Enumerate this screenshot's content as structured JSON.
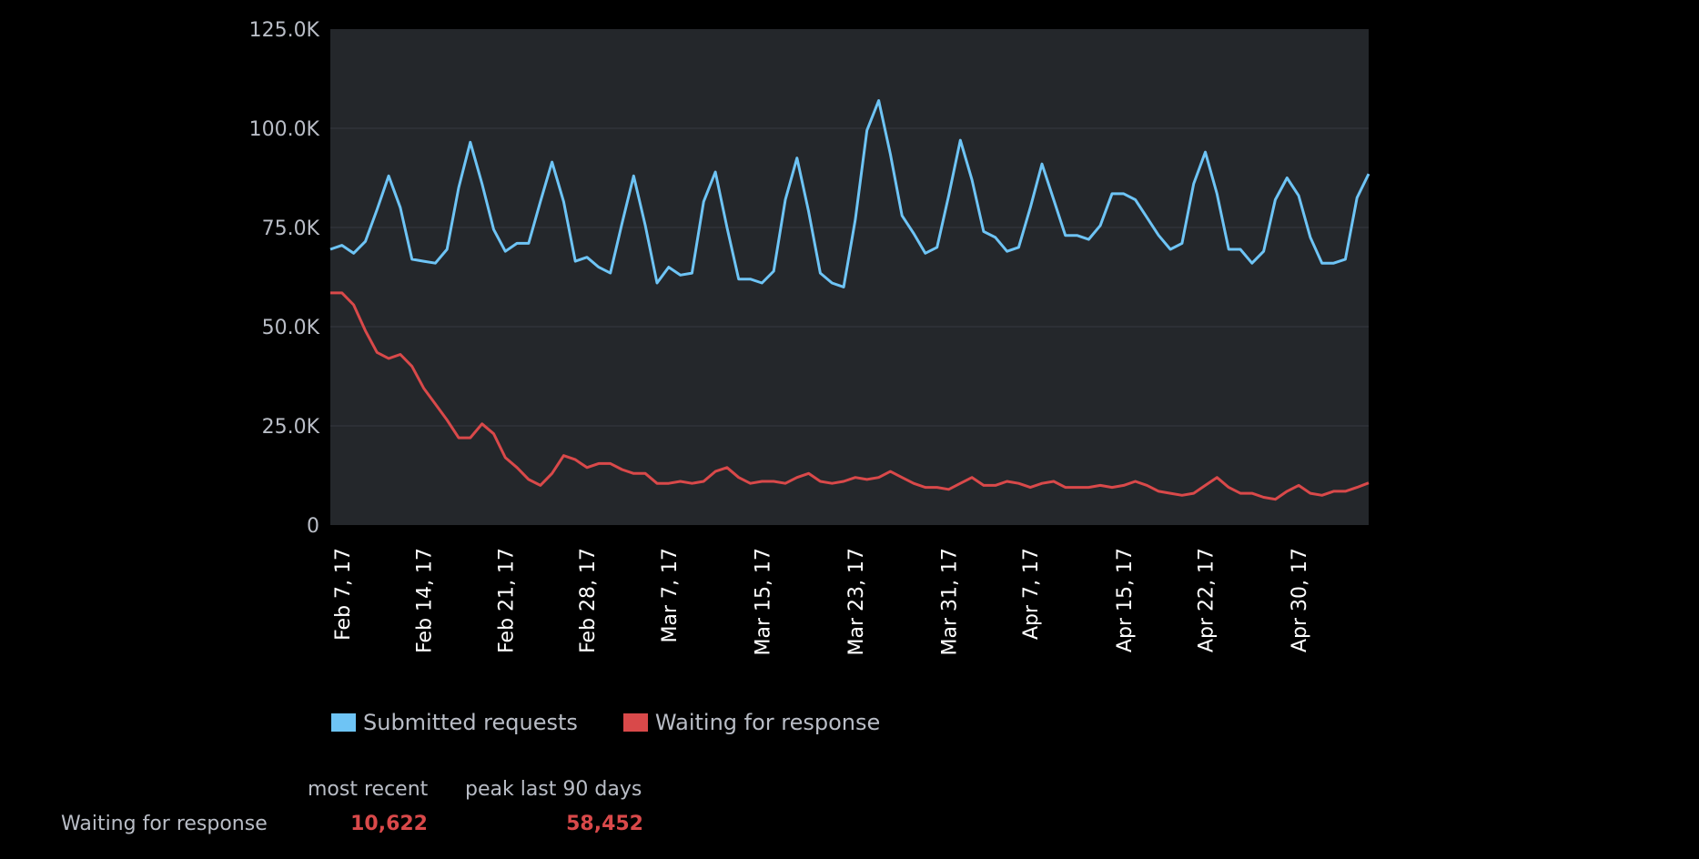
{
  "colors": {
    "background": "#000000",
    "plot_background": "#24272b",
    "gridline": "#363a40",
    "submitted": "#6ec4f5",
    "waiting": "#d9494a",
    "axis_text": "#b9bdc6",
    "tick_text": "#ffffff"
  },
  "legend": {
    "submitted_label": "Submitted requests",
    "waiting_label": "Waiting for response"
  },
  "stats": {
    "col_most_recent": "most recent",
    "col_peak": "peak last 90 days",
    "row_label": "Waiting for response",
    "most_recent_value": "10,622",
    "peak_value": "58,452"
  },
  "chart_data": {
    "type": "line",
    "title": "",
    "xlabel": "",
    "ylabel": "",
    "ylim": [
      0,
      125000
    ],
    "grid": true,
    "legend_placement": "bottom-left",
    "y_ticks": [
      "0",
      "25.0K",
      "50.0K",
      "75.0K",
      "100.0K",
      "125.0K"
    ],
    "x_ticks": [
      {
        "day": 1,
        "label": "Feb 7, 17"
      },
      {
        "day": 8,
        "label": "Feb 14, 17"
      },
      {
        "day": 15,
        "label": "Feb 21, 17"
      },
      {
        "day": 22,
        "label": "Feb 28, 17"
      },
      {
        "day": 29,
        "label": "Mar 7, 17"
      },
      {
        "day": 37,
        "label": "Mar 15, 17"
      },
      {
        "day": 45,
        "label": "Mar 23, 17"
      },
      {
        "day": 53,
        "label": "Mar 31, 17"
      },
      {
        "day": 60,
        "label": "Apr 7, 17"
      },
      {
        "day": 68,
        "label": "Apr 15, 17"
      },
      {
        "day": 75,
        "label": "Apr 22, 17"
      },
      {
        "day": 83,
        "label": "Apr 30, 17"
      }
    ],
    "x_start": "Feb 6, 17",
    "series": [
      {
        "name": "Submitted requests",
        "values": [
          69500,
          70500,
          68500,
          71500,
          79500,
          88000,
          80000,
          67000,
          66500,
          66000,
          69500,
          85000,
          96500,
          86000,
          74500,
          69000,
          71000,
          71000,
          81500,
          91500,
          81500,
          66500,
          67500,
          65000,
          63500,
          76000,
          88000,
          75500,
          61000,
          65000,
          63000,
          63500,
          81500,
          89000,
          75000,
          62000,
          62000,
          61000,
          64000,
          82000,
          92500,
          79000,
          63500,
          61000,
          60000,
          77000,
          99500,
          107000,
          93500,
          78000,
          73500,
          68500,
          70000,
          83000,
          97000,
          87000,
          74000,
          72500,
          69000,
          70000,
          80000,
          91000,
          82000,
          73000,
          73000,
          72000,
          75500,
          83500,
          83500,
          82000,
          77500,
          73000,
          69500,
          71000,
          86000,
          94000,
          83500,
          69500,
          69500,
          66000,
          69000,
          82000,
          87500,
          83000,
          72500,
          66000,
          66000,
          67000,
          82500,
          88500
        ]
      },
      {
        "name": "Waiting for response",
        "values": [
          58500,
          58500,
          55500,
          49000,
          43500,
          42000,
          43000,
          40000,
          34500,
          30500,
          26500,
          22000,
          22000,
          25500,
          23000,
          17000,
          14500,
          11500,
          10000,
          13000,
          17500,
          16500,
          14500,
          15500,
          15500,
          14000,
          13000,
          13000,
          10500,
          10500,
          11000,
          10500,
          11000,
          13500,
          14500,
          12000,
          10500,
          11000,
          11000,
          10500,
          12000,
          13000,
          11000,
          10500,
          11000,
          12000,
          11500,
          12000,
          13500,
          12000,
          10500,
          9500,
          9500,
          9000,
          10500,
          12000,
          10000,
          10000,
          11000,
          10500,
          9500,
          10500,
          11000,
          9500,
          9500,
          9500,
          10000,
          9500,
          10000,
          11000,
          10000,
          8500,
          8000,
          7500,
          8000,
          10000,
          12000,
          9500,
          8000,
          8000,
          7000,
          6500,
          8500,
          10000,
          8000,
          7500,
          8500,
          8500,
          9500,
          10622
        ]
      }
    ]
  }
}
